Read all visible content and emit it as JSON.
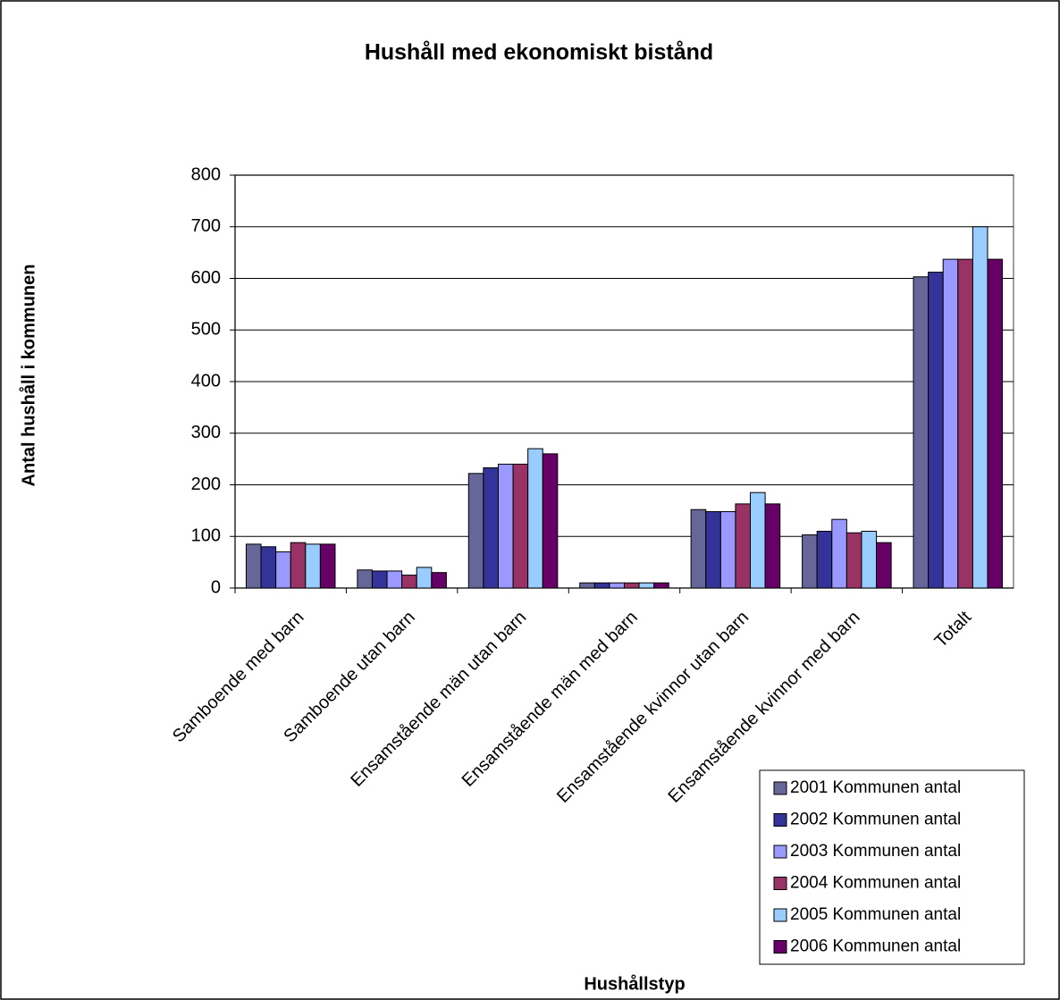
{
  "chart_data": {
    "type": "bar",
    "title": "Hushåll med ekonomiskt bistånd",
    "x_label": "Hushållstyp",
    "y_label": "Antal hushåll i kommunen",
    "categories": [
      "Samboende med barn",
      "Samboende utan barn",
      "Ensamstående män utan barn",
      "Ensamstående män med barn",
      "Ensamstående kvinnor utan barn",
      "Ensamstående kvinnor med barn",
      "Totalt"
    ],
    "series": [
      {
        "name": "2001 Kommunen antal",
        "color": "#666699",
        "values": [
          85,
          35,
          222,
          10,
          152,
          103,
          603
        ]
      },
      {
        "name": "2002 Kommunen antal",
        "color": "#333399",
        "values": [
          80,
          33,
          233,
          10,
          148,
          110,
          612
        ]
      },
      {
        "name": "2003 Kommunen antal",
        "color": "#9999ff",
        "values": [
          70,
          33,
          240,
          10,
          148,
          133,
          637
        ]
      },
      {
        "name": "2004 Kommunen antal",
        "color": "#993366",
        "values": [
          88,
          25,
          240,
          10,
          163,
          107,
          637
        ]
      },
      {
        "name": "2005 Kommunen antal",
        "color": "#99ccff",
        "values": [
          85,
          40,
          270,
          10,
          185,
          110,
          700
        ]
      },
      {
        "name": "2006 Kommunen antal",
        "color": "#660066",
        "values": [
          85,
          30,
          260,
          10,
          163,
          88,
          637
        ]
      }
    ],
    "ylim": [
      0,
      800
    ],
    "yticks": [
      0,
      100,
      200,
      300,
      400,
      500,
      600,
      700,
      800
    ],
    "grid": true,
    "legend": "lower right"
  }
}
